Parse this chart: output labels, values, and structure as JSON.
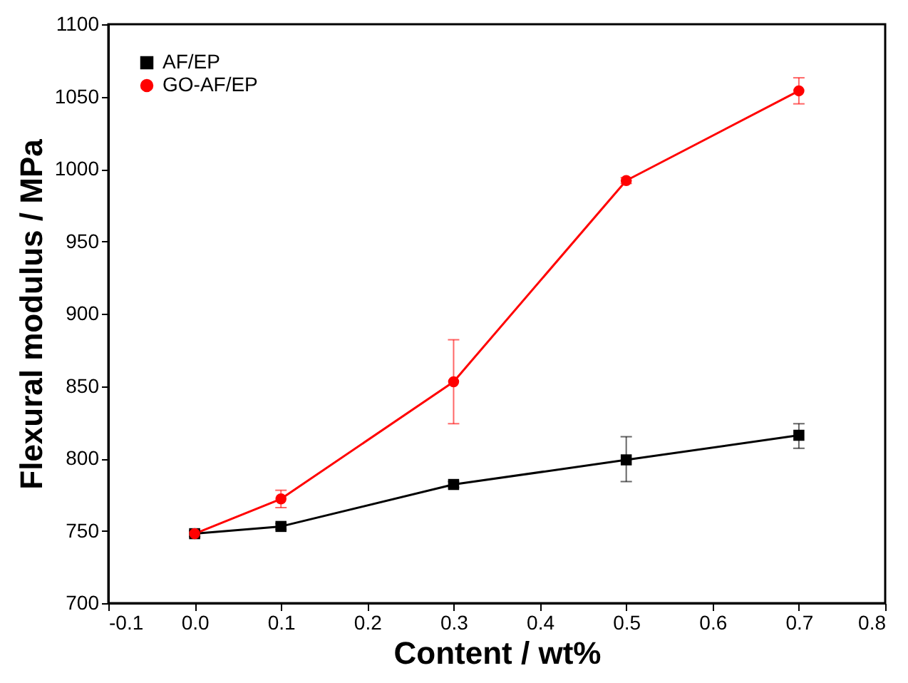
{
  "chart_data": {
    "type": "line",
    "xlabel": "Content / wt%",
    "ylabel": "Flexural modulus / MPa",
    "xlim": [
      -0.1,
      0.8
    ],
    "xticks": [
      -0.1,
      {
        "value": 0,
        "label": "0.0"
      },
      0.1,
      0.2,
      0.3,
      0.4,
      0.5,
      0.6,
      0.7,
      0.8
    ],
    "ylim": [
      700,
      1100
    ],
    "yticks": [
      700,
      750,
      800,
      850,
      900,
      950,
      1000,
      1050,
      1100
    ],
    "grid": false,
    "legend": "top left",
    "series": [
      {
        "name": "AF/EP",
        "color": "#000000",
        "marker": "square",
        "x": [
          0.0,
          0.1,
          0.3,
          0.5,
          0.7
        ],
        "values": [
          748,
          753,
          782,
          799,
          816
        ],
        "errors": [
          2,
          2,
          2,
          [
            784,
            815
          ],
          [
            807,
            824
          ]
        ]
      },
      {
        "name": "GO-AF/EP",
        "color": "#ff0000",
        "marker": "circle",
        "x": [
          0.0,
          0.1,
          0.3,
          0.5,
          0.7
        ],
        "values": [
          748,
          772,
          853,
          992,
          1054
        ],
        "errors": [
          2,
          [
            766,
            778
          ],
          [
            824,
            882
          ],
          2,
          [
            1045,
            1063
          ]
        ]
      }
    ]
  }
}
